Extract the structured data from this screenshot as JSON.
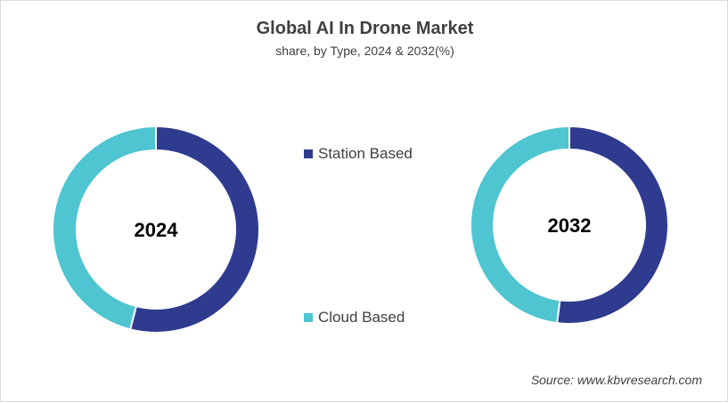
{
  "chart_data": [
    {
      "type": "pie",
      "donut": true,
      "title": "Global AI In Drone Market",
      "subtitle": "share, by Type, 2024 & 2032(%)",
      "center_label": "2024",
      "categories": [
        "Station Based",
        "Cloud Based"
      ],
      "values": [
        54,
        46
      ],
      "colors": [
        "#2e3b8e",
        "#4ec5d1"
      ]
    },
    {
      "type": "pie",
      "donut": true,
      "center_label": "2032",
      "categories": [
        "Station Based",
        "Cloud Based"
      ],
      "values": [
        52,
        48
      ],
      "colors": [
        "#2e3b8e",
        "#4ec5d1"
      ]
    }
  ],
  "title": "Global AI In Drone Market",
  "subtitle": "share, by Type, 2024 & 2032(%)",
  "legend": [
    {
      "label": "Station Based",
      "color": "#2e3b8e"
    },
    {
      "label": "Cloud Based",
      "color": "#4ec5d1"
    }
  ],
  "source": "Source: www.kbvresearch.com"
}
